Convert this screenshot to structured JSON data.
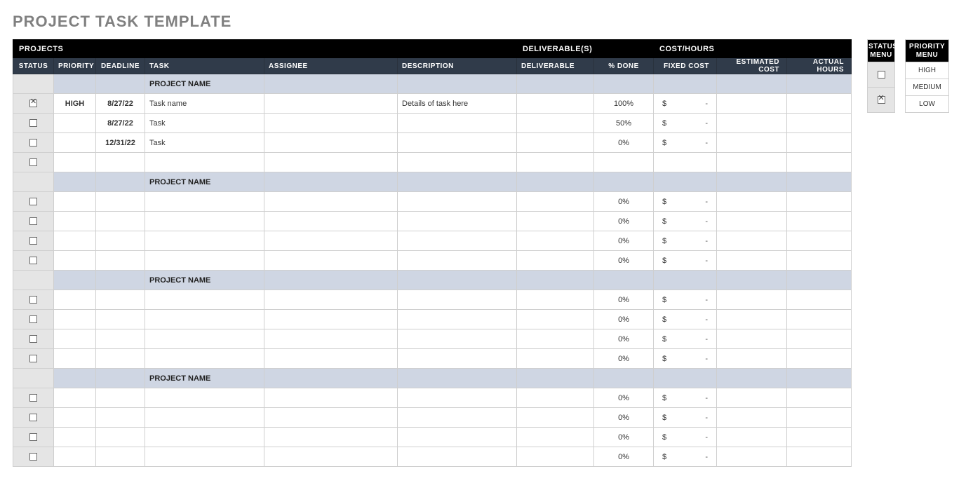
{
  "title": "PROJECT TASK TEMPLATE",
  "group_headers": {
    "projects": "PROJECTS",
    "deliverables": "DELIVERABLE(S)",
    "cost_hours": "COST/HOURS"
  },
  "columns": {
    "status": "STATUS",
    "priority": "PRIORITY",
    "deadline": "DEADLINE",
    "task": "TASK",
    "assignee": "ASSIGNEE",
    "description": "DESCRIPTION",
    "deliverable": "DELIVERABLE",
    "pct_done": "% DONE",
    "fixed_cost": "FIXED COST",
    "estimated_cost": "ESTIMATED COST",
    "actual_hours": "ACTUAL HOURS"
  },
  "col_widths": {
    "status": 58,
    "priority": 60,
    "deadline": 70,
    "task": 170,
    "assignee": 190,
    "description": 170,
    "deliverable": 110,
    "pct_done": 85,
    "fixed_cost": 90,
    "estimated_cost": 100,
    "actual_hours": 92
  },
  "colors": {
    "page_bg": "#ffffff",
    "title_color": "#808080",
    "black_header_bg": "#000000",
    "col_header_bg": "#303b4a",
    "header_text": "#ffffff",
    "project_row_bg": "#cfd6e3",
    "status_cell_bg": "#e5e5e5",
    "border": "#cfcfcf"
  },
  "project_label": "PROJECT NAME",
  "cost_placeholder": {
    "symbol": "$",
    "dash": "-"
  },
  "projects": [
    {
      "rows": [
        {
          "checked": true,
          "priority": "HIGH",
          "deadline": "8/27/22",
          "task": "Task name",
          "assignee": "",
          "description": "Details of task here",
          "deliverable": "",
          "pct_done": "100%",
          "fixed_cost": true,
          "estimated_cost": "",
          "actual_hours": ""
        },
        {
          "checked": false,
          "priority": "",
          "deadline": "8/27/22",
          "task": "Task",
          "assignee": "",
          "description": "",
          "deliverable": "",
          "pct_done": "50%",
          "fixed_cost": true,
          "estimated_cost": "",
          "actual_hours": ""
        },
        {
          "checked": false,
          "priority": "",
          "deadline": "12/31/22",
          "task": "Task",
          "assignee": "",
          "description": "",
          "deliverable": "",
          "pct_done": "0%",
          "fixed_cost": true,
          "estimated_cost": "",
          "actual_hours": ""
        },
        {
          "checked": false,
          "priority": "",
          "deadline": "",
          "task": "",
          "assignee": "",
          "description": "",
          "deliverable": "",
          "pct_done": "",
          "fixed_cost": false,
          "estimated_cost": "",
          "actual_hours": ""
        }
      ]
    },
    {
      "rows": [
        {
          "checked": false,
          "priority": "",
          "deadline": "",
          "task": "",
          "assignee": "",
          "description": "",
          "deliverable": "",
          "pct_done": "0%",
          "fixed_cost": true,
          "estimated_cost": "",
          "actual_hours": ""
        },
        {
          "checked": false,
          "priority": "",
          "deadline": "",
          "task": "",
          "assignee": "",
          "description": "",
          "deliverable": "",
          "pct_done": "0%",
          "fixed_cost": true,
          "estimated_cost": "",
          "actual_hours": ""
        },
        {
          "checked": false,
          "priority": "",
          "deadline": "",
          "task": "",
          "assignee": "",
          "description": "",
          "deliverable": "",
          "pct_done": "0%",
          "fixed_cost": true,
          "estimated_cost": "",
          "actual_hours": ""
        },
        {
          "checked": false,
          "priority": "",
          "deadline": "",
          "task": "",
          "assignee": "",
          "description": "",
          "deliverable": "",
          "pct_done": "0%",
          "fixed_cost": true,
          "estimated_cost": "",
          "actual_hours": ""
        }
      ]
    },
    {
      "rows": [
        {
          "checked": false,
          "priority": "",
          "deadline": "",
          "task": "",
          "assignee": "",
          "description": "",
          "deliverable": "",
          "pct_done": "0%",
          "fixed_cost": true,
          "estimated_cost": "",
          "actual_hours": ""
        },
        {
          "checked": false,
          "priority": "",
          "deadline": "",
          "task": "",
          "assignee": "",
          "description": "",
          "deliverable": "",
          "pct_done": "0%",
          "fixed_cost": true,
          "estimated_cost": "",
          "actual_hours": ""
        },
        {
          "checked": false,
          "priority": "",
          "deadline": "",
          "task": "",
          "assignee": "",
          "description": "",
          "deliverable": "",
          "pct_done": "0%",
          "fixed_cost": true,
          "estimated_cost": "",
          "actual_hours": ""
        },
        {
          "checked": false,
          "priority": "",
          "deadline": "",
          "task": "",
          "assignee": "",
          "description": "",
          "deliverable": "",
          "pct_done": "0%",
          "fixed_cost": true,
          "estimated_cost": "",
          "actual_hours": ""
        }
      ]
    },
    {
      "rows": [
        {
          "checked": false,
          "priority": "",
          "deadline": "",
          "task": "",
          "assignee": "",
          "description": "",
          "deliverable": "",
          "pct_done": "0%",
          "fixed_cost": true,
          "estimated_cost": "",
          "actual_hours": ""
        },
        {
          "checked": false,
          "priority": "",
          "deadline": "",
          "task": "",
          "assignee": "",
          "description": "",
          "deliverable": "",
          "pct_done": "0%",
          "fixed_cost": true,
          "estimated_cost": "",
          "actual_hours": ""
        },
        {
          "checked": false,
          "priority": "",
          "deadline": "",
          "task": "",
          "assignee": "",
          "description": "",
          "deliverable": "",
          "pct_done": "0%",
          "fixed_cost": true,
          "estimated_cost": "",
          "actual_hours": ""
        },
        {
          "checked": false,
          "priority": "",
          "deadline": "",
          "task": "",
          "assignee": "",
          "description": "",
          "deliverable": "",
          "pct_done": "0%",
          "fixed_cost": true,
          "estimated_cost": "",
          "actual_hours": ""
        }
      ]
    }
  ],
  "status_menu": {
    "title": "STATUS\nMENU",
    "items": [
      {
        "checked": false
      },
      {
        "checked": true
      }
    ]
  },
  "priority_menu": {
    "title": "PRIORITY\nMENU",
    "items": [
      {
        "label": "HIGH"
      },
      {
        "label": "MEDIUM"
      },
      {
        "label": "LOW"
      }
    ]
  }
}
